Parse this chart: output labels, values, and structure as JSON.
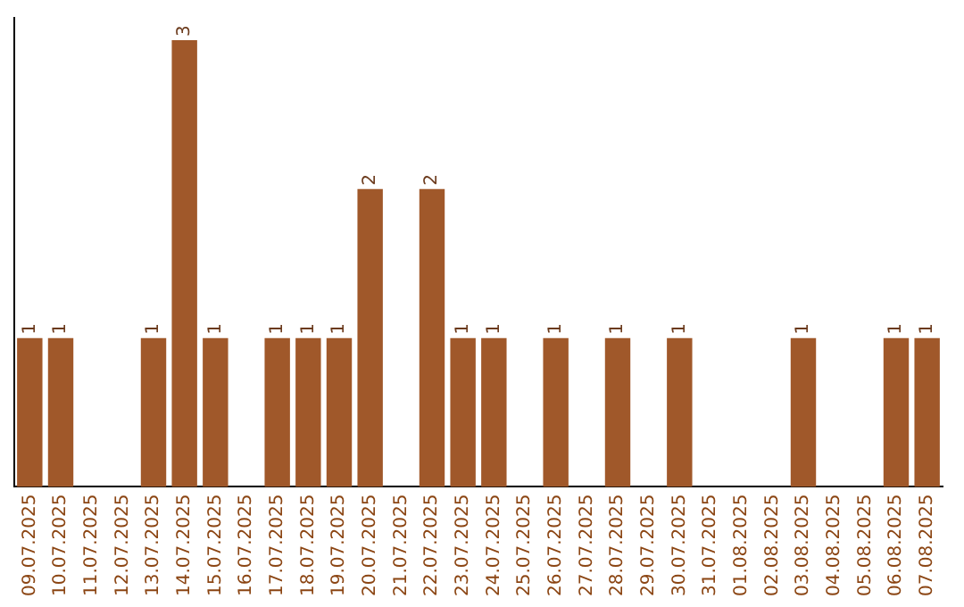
{
  "chart_data": {
    "type": "bar",
    "categories": [
      "09.07.2025",
      "10.07.2025",
      "11.07.2025",
      "12.07.2025",
      "13.07.2025",
      "14.07.2025",
      "15.07.2025",
      "16.07.2025",
      "17.07.2025",
      "18.07.2025",
      "19.07.2025",
      "20.07.2025",
      "21.07.2025",
      "22.07.2025",
      "23.07.2025",
      "24.07.2025",
      "25.07.2025",
      "26.07.2025",
      "27.07.2025",
      "28.07.2025",
      "29.07.2025",
      "30.07.2025",
      "31.07.2025",
      "01.08.2025",
      "02.08.2025",
      "03.08.2025",
      "04.08.2025",
      "05.08.2025",
      "06.08.2025",
      "07.08.2025"
    ],
    "values": [
      1,
      1,
      0,
      0,
      1,
      3,
      1,
      0,
      1,
      1,
      1,
      2,
      0,
      2,
      1,
      1,
      0,
      1,
      0,
      1,
      0,
      1,
      0,
      0,
      0,
      1,
      0,
      0,
      1,
      1
    ],
    "value_labels": [
      "1",
      "1",
      null,
      null,
      "1",
      "3",
      "1",
      null,
      "1",
      "1",
      "1",
      "2",
      null,
      "2",
      "1",
      "1",
      null,
      "1",
      null,
      "1",
      null,
      "1",
      null,
      null,
      null,
      "1",
      null,
      null,
      "1",
      "1"
    ],
    "color": "#a0582a",
    "ylim": [
      0,
      3.15
    ],
    "tick_labels": "x",
    "grid": false,
    "legend": false
  }
}
